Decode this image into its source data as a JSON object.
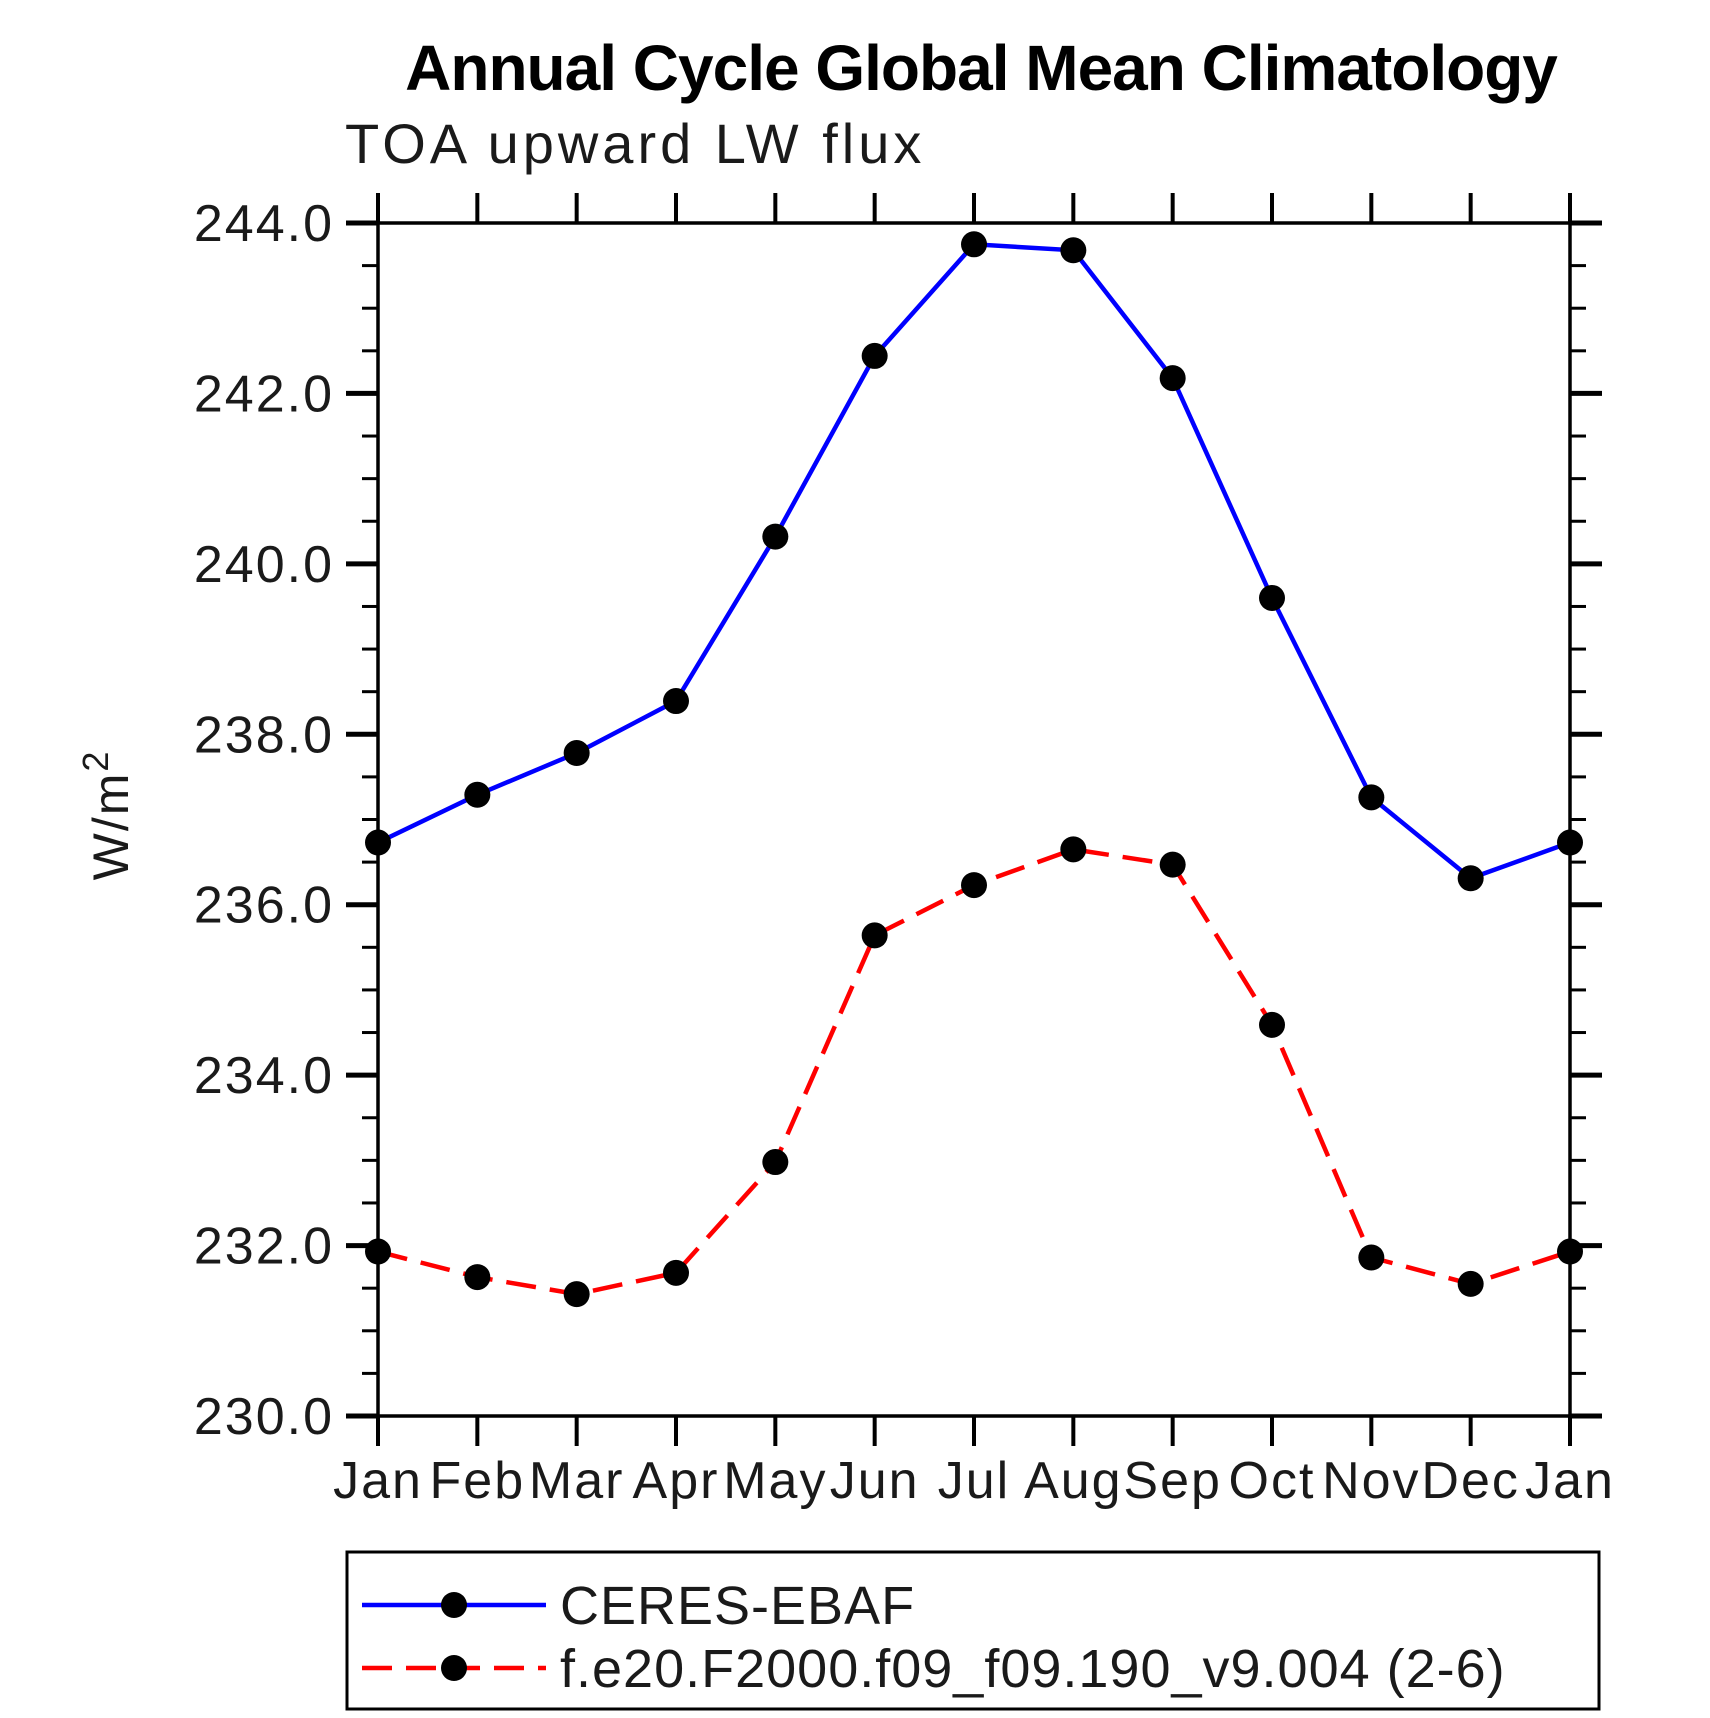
{
  "page": {
    "background_color": "#ffffff",
    "axis_color": "#000000",
    "text_color": "#1a1a1a"
  },
  "chart_data": {
    "type": "line",
    "title": "Annual Cycle Global Mean Climatology",
    "subtitle": "TOA upward LW flux",
    "ylabel_base": "W/m",
    "ylabel_exponent": "2",
    "xlabel": "",
    "categories": [
      "Jan",
      "Feb",
      "Mar",
      "Apr",
      "May",
      "Jun",
      "Jul",
      "Aug",
      "Sep",
      "Oct",
      "Nov",
      "Dec",
      "Jan"
    ],
    "ylim": [
      230.0,
      244.0
    ],
    "ytick_step": 2.0,
    "ytick_minor_step": 0.5,
    "ytick_labels": [
      "230.0",
      "232.0",
      "234.0",
      "236.0",
      "238.0",
      "240.0",
      "242.0",
      "244.0"
    ],
    "grid": false,
    "legend_position": "bottom-left",
    "marker_color": "#000000",
    "series": [
      {
        "name": "CERES-EBAF",
        "color": "#0000ff",
        "line_style": "solid",
        "marker": "filled-circle",
        "values": [
          236.73,
          237.29,
          237.78,
          238.39,
          240.32,
          242.44,
          243.75,
          243.68,
          242.18,
          239.6,
          237.26,
          236.31,
          236.73
        ]
      },
      {
        "name": "f.e20.F2000.f09_f09.190_v9.004 (2-6)",
        "color": "#ff0000",
        "line_style": "dashed",
        "marker": "filled-circle",
        "values": [
          231.93,
          231.63,
          231.43,
          231.68,
          232.98,
          235.64,
          236.23,
          236.65,
          236.47,
          234.59,
          231.86,
          231.55,
          231.93
        ]
      }
    ]
  }
}
